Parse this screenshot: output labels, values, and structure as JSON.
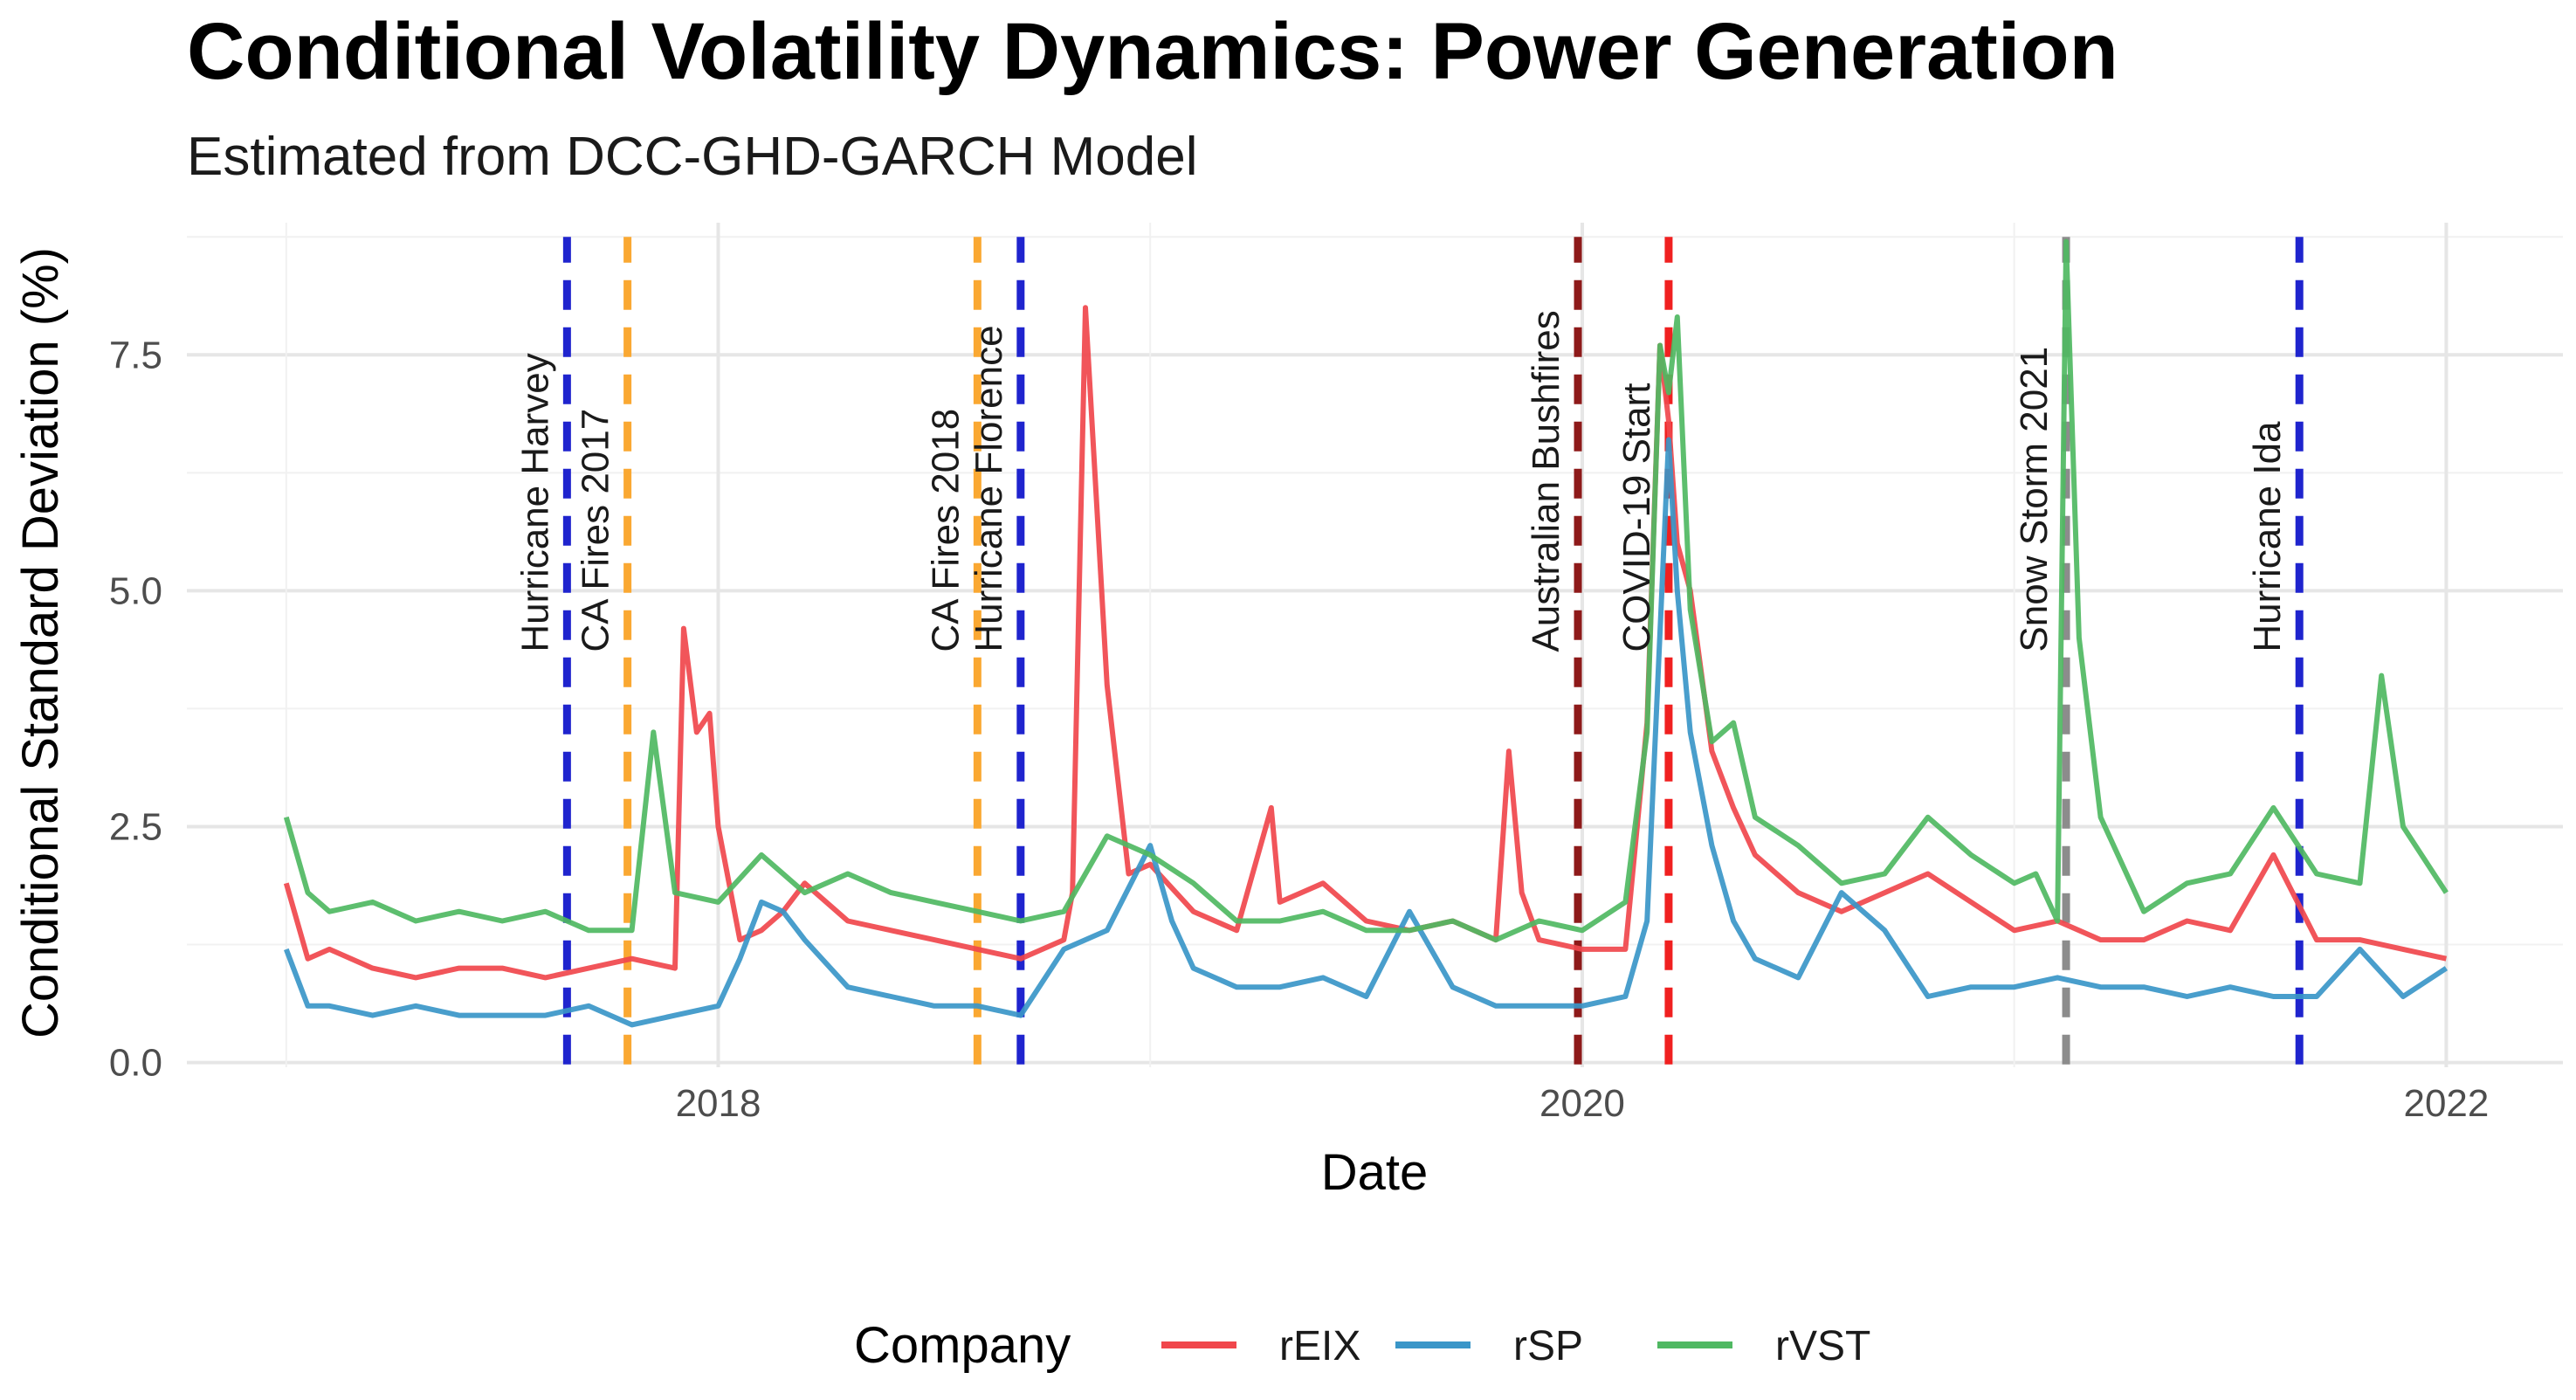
{
  "chart_data": {
    "type": "line",
    "title": "Conditional Volatility Dynamics: Power Generation",
    "subtitle": "Estimated from DCC-GHD-GARCH Model",
    "xlabel": "Date",
    "ylabel": "Conditional Standard Deviation (%)",
    "x_ticks": [
      {
        "label": "2018",
        "value": 2018.0
      },
      {
        "label": "2020",
        "value": 2020.0
      },
      {
        "label": "2022",
        "value": 2022.0
      }
    ],
    "y_ticks": [
      {
        "label": "0.0",
        "value": 0.0
      },
      {
        "label": "2.5",
        "value": 2.5
      },
      {
        "label": "5.0",
        "value": 5.0
      },
      {
        "label": "7.5",
        "value": 7.5
      }
    ],
    "xlim": [
      2016.77,
      2022.27
    ],
    "ylim": [
      -0.05,
      8.9
    ],
    "grid": true,
    "legend": {
      "title": "Company",
      "position": "bottom"
    },
    "series": [
      {
        "name": "rEIX",
        "color": "#F0474C",
        "x": [
          2017.0,
          2017.05,
          2017.1,
          2017.2,
          2017.3,
          2017.4,
          2017.5,
          2017.6,
          2017.7,
          2017.8,
          2017.9,
          2017.92,
          2017.95,
          2017.98,
          2018.0,
          2018.05,
          2018.1,
          2018.15,
          2018.2,
          2018.3,
          2018.4,
          2018.5,
          2018.6,
          2018.7,
          2018.8,
          2018.82,
          2018.85,
          2018.9,
          2018.95,
          2019.0,
          2019.1,
          2019.2,
          2019.28,
          2019.3,
          2019.4,
          2019.5,
          2019.6,
          2019.7,
          2019.8,
          2019.83,
          2019.86,
          2019.9,
          2020.0,
          2020.1,
          2020.15,
          2020.18,
          2020.2,
          2020.22,
          2020.25,
          2020.3,
          2020.35,
          2020.4,
          2020.5,
          2020.6,
          2020.7,
          2020.8,
          2020.9,
          2021.0,
          2021.1,
          2021.2,
          2021.3,
          2021.4,
          2021.5,
          2021.6,
          2021.7,
          2021.8,
          2021.9,
          2022.0
        ],
        "y": [
          1.9,
          1.1,
          1.2,
          1.0,
          0.9,
          1.0,
          1.0,
          0.9,
          1.0,
          1.1,
          1.0,
          4.6,
          3.5,
          3.7,
          2.5,
          1.3,
          1.4,
          1.6,
          1.9,
          1.5,
          1.4,
          1.3,
          1.2,
          1.1,
          1.3,
          1.8,
          8.0,
          4.0,
          2.0,
          2.1,
          1.6,
          1.4,
          2.7,
          1.7,
          1.9,
          1.5,
          1.4,
          1.5,
          1.3,
          3.3,
          1.8,
          1.3,
          1.2,
          1.2,
          3.6,
          7.6,
          6.8,
          5.5,
          5.0,
          3.3,
          2.7,
          2.2,
          1.8,
          1.6,
          1.8,
          2.0,
          1.7,
          1.4,
          1.5,
          1.3,
          1.3,
          1.5,
          1.4,
          2.2,
          1.3,
          1.3,
          1.2,
          1.1
        ]
      },
      {
        "name": "rSP",
        "color": "#3A96C8",
        "x": [
          2017.0,
          2017.05,
          2017.1,
          2017.2,
          2017.3,
          2017.4,
          2017.5,
          2017.6,
          2017.7,
          2017.8,
          2017.9,
          2018.0,
          2018.05,
          2018.1,
          2018.15,
          2018.2,
          2018.3,
          2018.4,
          2018.5,
          2018.6,
          2018.7,
          2018.8,
          2018.9,
          2019.0,
          2019.05,
          2019.1,
          2019.2,
          2019.3,
          2019.4,
          2019.5,
          2019.6,
          2019.7,
          2019.8,
          2019.9,
          2020.0,
          2020.1,
          2020.15,
          2020.2,
          2020.22,
          2020.25,
          2020.3,
          2020.35,
          2020.4,
          2020.5,
          2020.6,
          2020.7,
          2020.8,
          2020.9,
          2021.0,
          2021.1,
          2021.2,
          2021.3,
          2021.4,
          2021.5,
          2021.6,
          2021.7,
          2021.8,
          2021.9,
          2022.0
        ],
        "y": [
          1.2,
          0.6,
          0.6,
          0.5,
          0.6,
          0.5,
          0.5,
          0.5,
          0.6,
          0.4,
          0.5,
          0.6,
          1.1,
          1.7,
          1.6,
          1.3,
          0.8,
          0.7,
          0.6,
          0.6,
          0.5,
          1.2,
          1.4,
          2.3,
          1.5,
          1.0,
          0.8,
          0.8,
          0.9,
          0.7,
          1.6,
          0.8,
          0.6,
          0.6,
          0.6,
          0.7,
          1.5,
          6.6,
          5.0,
          3.5,
          2.3,
          1.5,
          1.1,
          0.9,
          1.8,
          1.4,
          0.7,
          0.8,
          0.8,
          0.9,
          0.8,
          0.8,
          0.7,
          0.8,
          0.7,
          0.7,
          1.2,
          0.7,
          1.0
        ]
      },
      {
        "name": "rVST",
        "color": "#4FB862",
        "x": [
          2017.0,
          2017.05,
          2017.1,
          2017.2,
          2017.3,
          2017.4,
          2017.5,
          2017.6,
          2017.7,
          2017.8,
          2017.85,
          2017.9,
          2018.0,
          2018.1,
          2018.2,
          2018.3,
          2018.4,
          2018.5,
          2018.6,
          2018.7,
          2018.8,
          2018.9,
          2019.0,
          2019.1,
          2019.2,
          2019.3,
          2019.4,
          2019.5,
          2019.6,
          2019.7,
          2019.8,
          2019.9,
          2020.0,
          2020.1,
          2020.15,
          2020.18,
          2020.2,
          2020.22,
          2020.25,
          2020.3,
          2020.35,
          2020.4,
          2020.5,
          2020.6,
          2020.7,
          2020.8,
          2020.9,
          2021.0,
          2021.05,
          2021.1,
          2021.12,
          2021.15,
          2021.2,
          2021.3,
          2021.4,
          2021.5,
          2021.6,
          2021.7,
          2021.8,
          2021.85,
          2021.9,
          2022.0
        ],
        "y": [
          2.6,
          1.8,
          1.6,
          1.7,
          1.5,
          1.6,
          1.5,
          1.6,
          1.4,
          1.4,
          3.5,
          1.8,
          1.7,
          2.2,
          1.8,
          2.0,
          1.8,
          1.7,
          1.6,
          1.5,
          1.6,
          2.4,
          2.2,
          1.9,
          1.5,
          1.5,
          1.6,
          1.4,
          1.4,
          1.5,
          1.3,
          1.5,
          1.4,
          1.7,
          3.5,
          7.6,
          7.1,
          7.9,
          4.8,
          3.4,
          3.6,
          2.6,
          2.3,
          1.9,
          2.0,
          2.6,
          2.2,
          1.9,
          2.0,
          1.5,
          8.7,
          4.5,
          2.6,
          1.6,
          1.9,
          2.0,
          2.7,
          2.0,
          1.9,
          4.1,
          2.5,
          1.8
        ]
      }
    ],
    "events": [
      {
        "label": "Hurricane Harvey",
        "date": 2017.65,
        "color": "#1F24CE"
      },
      {
        "label": "CA Fires 2017",
        "date": 2017.79,
        "color": "#FAA832"
      },
      {
        "label": "CA Fires 2018",
        "date": 2018.6,
        "color": "#FAA832"
      },
      {
        "label": "Hurricane Florence",
        "date": 2018.7,
        "color": "#1F24CE"
      },
      {
        "label": "Australian Bushfires",
        "date": 2019.99,
        "color": "#8E1A1A"
      },
      {
        "label": "COVID-19 Start",
        "date": 2020.2,
        "color": "#F02020"
      },
      {
        "label": "Snow Storm 2021",
        "date": 2021.12,
        "color": "#8C8C8C"
      },
      {
        "label": "Hurricane Ida",
        "date": 2021.66,
        "color": "#1F24CE"
      }
    ]
  }
}
